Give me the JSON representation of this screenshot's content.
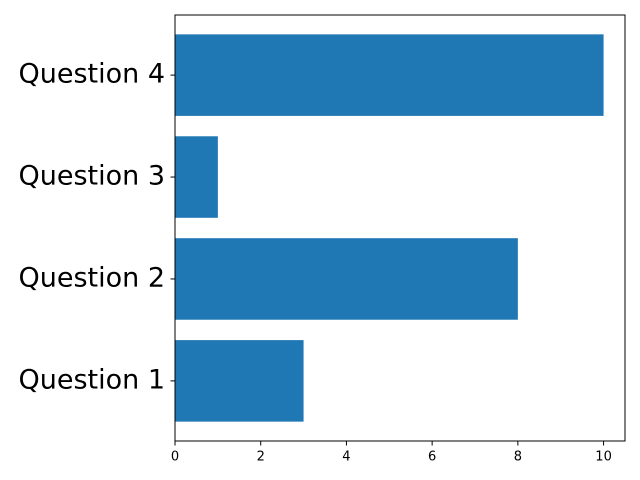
{
  "chart_data": {
    "type": "barh",
    "categories": [
      "Question 1",
      "Question 2",
      "Question 3",
      "Question 4"
    ],
    "values": [
      3,
      8,
      1,
      10
    ],
    "color": "#1f77b4",
    "xlim": [
      0,
      10.5
    ],
    "xticks": [
      0,
      2,
      4,
      6,
      8,
      10
    ]
  }
}
